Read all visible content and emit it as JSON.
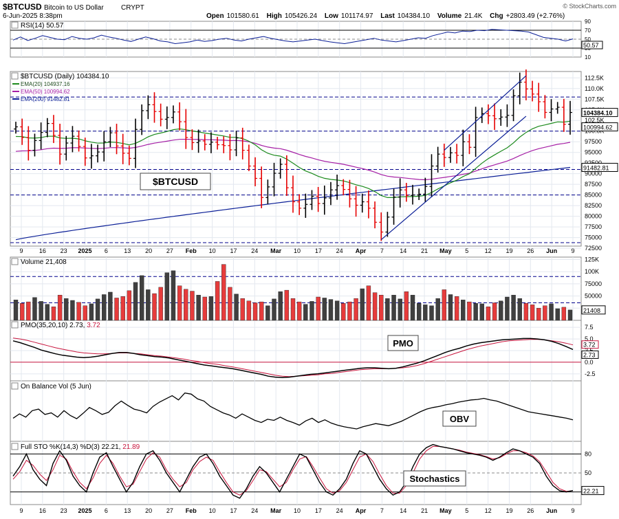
{
  "header": {
    "symbol": "$BTCUSD",
    "name": "Bitcoin to US Dollar",
    "exchange": "CRYPT",
    "date": "6-Jun-2025 8:38pm",
    "copyright": "© StockCharts.com",
    "open_label": "Open",
    "open": "101580.61",
    "high_label": "High",
    "high": "105426.24",
    "low_label": "Low",
    "low": "101174.97",
    "last_label": "Last",
    "last": "104384.10",
    "volume_label": "Volume",
    "volume": "21.4K",
    "chg_label": "Chg",
    "chg": "+2803.49 (+2.76%)"
  },
  "colors": {
    "up": "#000000",
    "down": "#e60000",
    "ema20": "#1c8a1c",
    "ema50": "#a51ea5",
    "ema200": "#0a1e96",
    "grid": "#e3e8ef",
    "dash": "#00008b",
    "pmo_signal": "#c8143c"
  },
  "chart_data": [
    {
      "panel": "rsi",
      "type": "line",
      "title": "RSI(14)",
      "last_label": "50.57",
      "ticks": [
        "90",
        "70",
        "50",
        "30",
        "10"
      ],
      "levels": [
        30,
        70
      ],
      "ylim": [
        10,
        90
      ],
      "values": [
        48,
        55,
        47,
        52,
        58,
        54,
        50,
        49,
        56,
        52,
        50,
        53,
        59,
        55,
        52,
        48,
        45,
        50,
        55,
        51,
        46,
        44,
        40,
        42,
        44,
        48,
        45,
        47,
        50,
        52,
        48,
        46,
        50,
        53,
        56,
        52,
        49,
        46,
        44,
        46,
        48,
        50,
        47,
        44,
        42,
        40,
        43,
        46,
        49,
        52,
        48,
        46,
        44,
        47,
        50,
        53,
        52,
        58,
        62,
        66,
        64,
        68,
        67,
        70,
        69,
        72,
        71,
        70,
        69,
        68,
        66,
        60,
        54,
        52,
        50,
        46,
        50.57
      ]
    },
    {
      "panel": "price",
      "type": "ohlc",
      "title": "$BTCUSD (Daily)",
      "title_value": "104384.10",
      "watermark": "$BTCUSD",
      "ylim": [
        73000,
        114000
      ],
      "ticks": [
        "112.5K",
        "110.0K",
        "107.5K",
        "105.0K",
        "102.5K",
        "100.0K",
        "97500",
        "95000",
        "92500",
        "90000",
        "87500",
        "85000",
        "82500",
        "80000",
        "77500",
        "75000",
        "72500"
      ],
      "x_ticks": [
        "9",
        "16",
        "23",
        "2025",
        "6",
        "13",
        "20",
        "27",
        "Feb",
        "10",
        "17",
        "24",
        "Mar",
        "10",
        "17",
        "24",
        "Apr",
        "7",
        "14",
        "21",
        "May",
        "5",
        "12",
        "19",
        "26",
        "Jun",
        "9"
      ],
      "dashed_levels": [
        108000,
        100000,
        91000,
        85000,
        73800
      ],
      "legend": [
        {
          "name": "EMA(20)",
          "value": "104937.16",
          "color": "#1c8a1c"
        },
        {
          "name": "EMA(50)",
          "value": "100994.62",
          "color": "#a51ea5"
        },
        {
          "name": "EMA(200)",
          "value": "91482.81",
          "color": "#0a1e96"
        }
      ],
      "markers": [
        {
          "value": "104384.10",
          "y": 104384,
          "style": "box-black"
        },
        {
          "value": "100994.62",
          "y": 100994,
          "style": "box-plain"
        },
        {
          "value": "91482.81",
          "y": 91482,
          "style": "box-plain"
        }
      ],
      "closes": [
        101000,
        98500,
        95500,
        97800,
        99700,
        101800,
        99000,
        94600,
        97200,
        98800,
        96400,
        93700,
        94200,
        95100,
        97500,
        99600,
        96500,
        94800,
        93600,
        100400,
        104800,
        106200,
        104600,
        102800,
        103200,
        104500,
        102200,
        98500,
        97300,
        97700,
        96900,
        97400,
        96800,
        96600,
        95600,
        98400,
        95500,
        91800,
        88900,
        84400,
        86900,
        90100,
        92200,
        86700,
        83400,
        81900,
        82800,
        84700,
        83000,
        84300,
        86200,
        87200,
        86300,
        84100,
        82600,
        83400,
        81900,
        78600,
        76300,
        79800,
        84500,
        86200,
        84900,
        85000,
        85200,
        87000,
        91800,
        94600,
        93800,
        94900,
        94300,
        97500,
        96200,
        103200,
        104100,
        103600,
        102900,
        103300,
        103700,
        108300,
        111500,
        109900,
        108700,
        106900,
        104400,
        105200,
        105600,
        101600,
        104384
      ]
    },
    {
      "panel": "volume",
      "type": "bar",
      "title": "Volume",
      "title_value": "21,408",
      "last_label": "21408",
      "ticks": [
        "125K",
        "100K",
        "75000",
        "50000",
        "25000"
      ],
      "ylim": [
        0,
        130000
      ],
      "values": [
        42,
        35,
        38,
        47,
        39,
        33,
        28,
        52,
        45,
        41,
        37,
        30,
        34,
        44,
        53,
        58,
        46,
        49,
        61,
        78,
        92,
        63,
        55,
        68,
        98,
        102,
        71,
        64,
        60,
        52,
        48,
        49,
        80,
        115,
        68,
        54,
        45,
        40,
        36,
        38,
        30,
        44,
        59,
        62,
        45,
        38,
        33,
        39,
        48,
        46,
        43,
        40,
        35,
        38,
        45,
        65,
        71,
        57,
        52,
        45,
        52,
        44,
        59,
        52,
        35,
        32,
        30,
        45,
        63,
        53,
        49,
        42,
        38,
        35,
        34,
        28,
        36,
        40,
        48,
        52,
        45,
        35,
        32,
        25,
        30,
        34,
        24,
        27,
        21.4
      ]
    },
    {
      "panel": "pmo",
      "type": "line",
      "title": "PMO(35,20,10)",
      "pmo_value": "2.73",
      "signal_value": "3.72",
      "label": "PMO",
      "ticks": [
        "7.5",
        "5.0",
        "2.5",
        "0.0",
        "-2.5"
      ],
      "ylim": [
        -4,
        9
      ],
      "values": [
        4.6,
        4.2,
        3.7,
        3.2,
        2.6,
        2.2,
        1.8,
        1.5,
        1.3,
        1.1,
        1.0,
        1.1,
        1.3,
        1.6,
        1.9,
        2.1,
        2.1,
        1.9,
        1.6,
        1.4,
        1.2,
        1.1,
        0.9,
        0.6,
        0.3,
        0.0,
        -0.3,
        -0.6,
        -0.8,
        -1.0,
        -1.2,
        -1.4,
        -1.7,
        -2.0,
        -2.3,
        -2.6,
        -3.0,
        -3.2,
        -3.3,
        -3.2,
        -3.0,
        -2.8,
        -2.6,
        -2.5,
        -2.3,
        -2.1,
        -1.9,
        -1.7,
        -1.5,
        -1.3,
        -1.2,
        -1.2,
        -1.3,
        -1.4,
        -1.3,
        -1.0,
        -0.6,
        -0.2,
        0.3,
        0.9,
        1.5,
        2.1,
        2.6,
        3.0,
        3.5,
        3.9,
        4.2,
        4.4,
        4.6,
        4.8,
        4.9,
        5.0,
        5.1,
        5.1,
        5.0,
        4.8,
        4.5,
        4.0,
        3.4,
        2.73
      ],
      "signal": [
        5.2,
        5.0,
        4.7,
        4.3,
        3.9,
        3.5,
        3.1,
        2.8,
        2.5,
        2.2,
        2.0,
        1.9,
        1.8,
        1.8,
        1.9,
        2.0,
        2.0,
        1.9,
        1.8,
        1.6,
        1.4,
        1.3,
        1.1,
        0.9,
        0.7,
        0.4,
        0.2,
        -0.1,
        -0.3,
        -0.5,
        -0.8,
        -1.0,
        -1.3,
        -1.6,
        -1.9,
        -2.2,
        -2.5,
        -2.8,
        -3.0,
        -3.1,
        -3.0,
        -2.9,
        -2.8,
        -2.7,
        -2.5,
        -2.4,
        -2.2,
        -2.0,
        -1.8,
        -1.6,
        -1.5,
        -1.4,
        -1.4,
        -1.4,
        -1.3,
        -1.2,
        -1.0,
        -0.7,
        -0.3,
        0.2,
        0.7,
        1.2,
        1.7,
        2.2,
        2.7,
        3.1,
        3.5,
        3.8,
        4.1,
        4.4,
        4.6,
        4.7,
        4.8,
        4.9,
        4.9,
        4.8,
        4.6,
        4.4,
        4.1,
        3.72
      ]
    },
    {
      "panel": "obv",
      "type": "line",
      "title": "On Balance Vol (5 Jun)",
      "label": "OBV",
      "ylim": [
        0,
        100
      ],
      "values": [
        38,
        46,
        40,
        52,
        55,
        45,
        48,
        40,
        52,
        43,
        37,
        47,
        58,
        52,
        45,
        49,
        61,
        70,
        62,
        55,
        52,
        48,
        60,
        68,
        74,
        80,
        72,
        85,
        83,
        74,
        70,
        60,
        54,
        48,
        44,
        38,
        46,
        40,
        34,
        30,
        36,
        34,
        40,
        34,
        30,
        25,
        33,
        38,
        30,
        35,
        29,
        25,
        22,
        20,
        18,
        22,
        25,
        28,
        26,
        24,
        28,
        32,
        38,
        44,
        50,
        55,
        58,
        60,
        63,
        65,
        68,
        70,
        72,
        73,
        75,
        72,
        70,
        66,
        62,
        58,
        54,
        50,
        48,
        46,
        44,
        42,
        40,
        38,
        35
      ]
    },
    {
      "panel": "stoch",
      "type": "line",
      "title": "Full STO %K(14,3) %D(3)",
      "k_value": "22.21",
      "d_value": "21.89",
      "label": "Stochastics",
      "last_label": "22.21",
      "ticks": [
        "80",
        "50",
        "20"
      ],
      "ylim": [
        0,
        100
      ],
      "k": [
        45,
        60,
        80,
        55,
        40,
        30,
        65,
        85,
        70,
        45,
        30,
        20,
        50,
        75,
        82,
        60,
        40,
        20,
        35,
        60,
        80,
        85,
        70,
        50,
        35,
        20,
        40,
        60,
        75,
        80,
        65,
        45,
        30,
        15,
        10,
        25,
        45,
        60,
        50,
        35,
        20,
        40,
        60,
        80,
        75,
        55,
        35,
        20,
        15,
        25,
        40,
        65,
        85,
        80,
        60,
        40,
        25,
        15,
        20,
        35,
        60,
        80,
        90,
        95,
        92,
        90,
        88,
        85,
        82,
        80,
        78,
        75,
        70,
        75,
        82,
        88,
        85,
        80,
        75,
        65,
        45,
        30,
        22,
        20,
        22.21
      ],
      "d": [
        40,
        52,
        70,
        62,
        48,
        38,
        55,
        78,
        72,
        52,
        35,
        25,
        42,
        65,
        78,
        65,
        45,
        28,
        32,
        52,
        72,
        82,
        75,
        55,
        40,
        28,
        35,
        55,
        68,
        75,
        70,
        52,
        35,
        20,
        15,
        22,
        38,
        55,
        52,
        40,
        28,
        35,
        55,
        72,
        76,
        60,
        42,
        25,
        18,
        22,
        35,
        55,
        75,
        80,
        68,
        48,
        30,
        18,
        18,
        30,
        50,
        72,
        85,
        92,
        92,
        90,
        88,
        86,
        83,
        81,
        79,
        76,
        72,
        74,
        80,
        85,
        85,
        82,
        77,
        68,
        52,
        35,
        25,
        21,
        21.89
      ]
    }
  ],
  "annotations": {
    "pmo_box": "PMO",
    "obv_box": "OBV",
    "stoch_box": "Stochastics"
  }
}
